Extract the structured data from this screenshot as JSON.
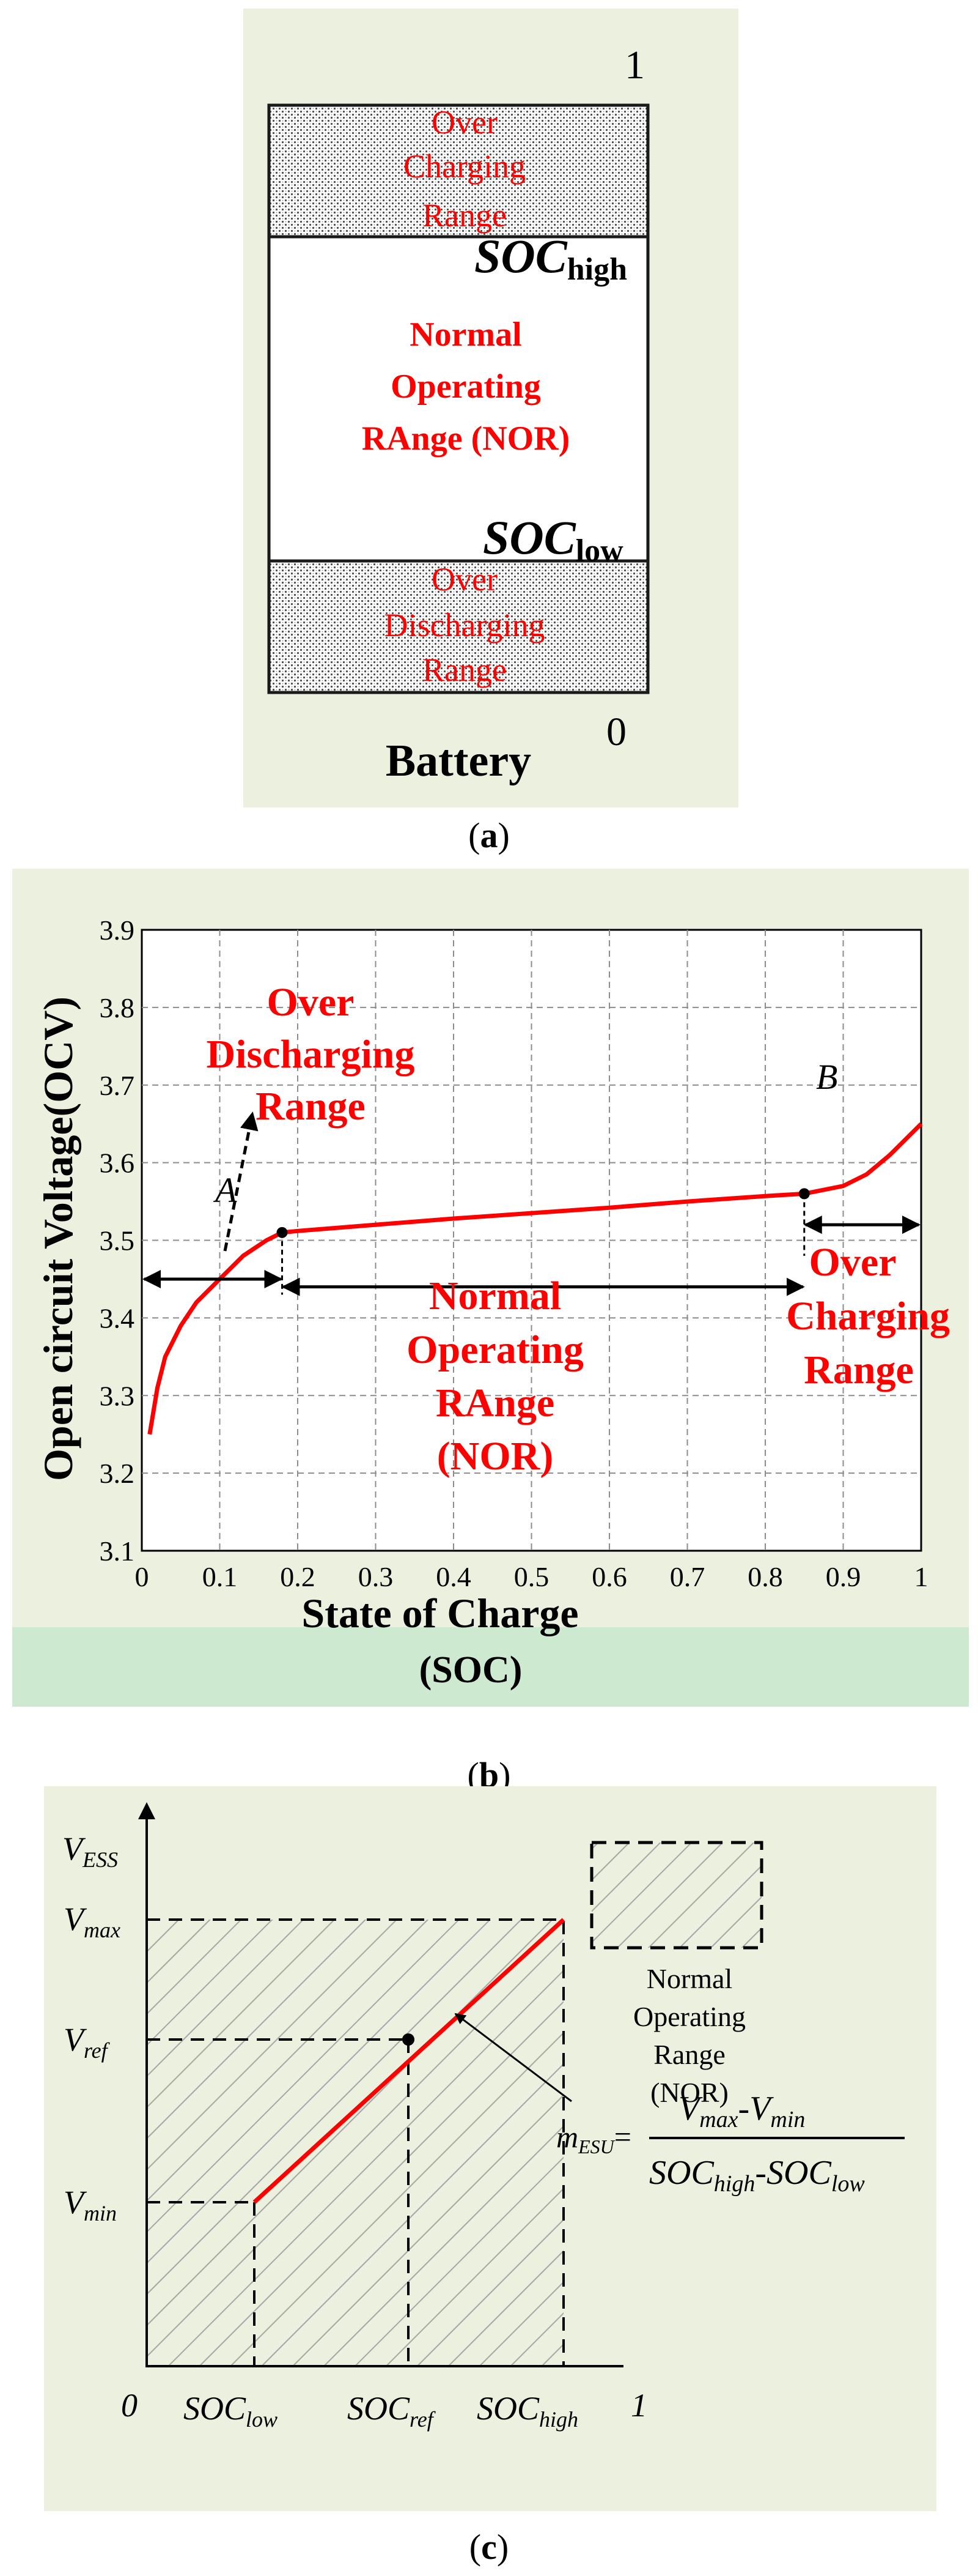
{
  "colors": {
    "panel_bg": "#ebf1de",
    "band_bg": "#cde9cf",
    "red": "#ff0000",
    "black": "#000000",
    "grid": "#8c8c8c",
    "hatch": "#a6a6a6"
  },
  "panel_a": {
    "top_value": "1",
    "bottom_value": "0",
    "over_charging": [
      "Over",
      "Charging",
      "Range"
    ],
    "soc_high_main": "SOC",
    "soc_high_sub": "high",
    "normal": [
      "Normal",
      "Operating",
      "RAnge (NOR)"
    ],
    "soc_low_main": "SOC",
    "soc_low_sub": "low",
    "over_discharging": [
      "Over",
      "Discharging",
      "Range"
    ],
    "battery_label": "Battery",
    "caption_open": "(",
    "caption_letter": "a",
    "caption_close": ")"
  },
  "panel_b": {
    "caption_open": "(",
    "caption_letter": "b",
    "caption_close": ")",
    "unit_band_label": "(SOC)",
    "marker_a": "A",
    "marker_b": "B",
    "over_discharging": [
      "Over",
      "Discharging",
      "Range"
    ],
    "normal": [
      "Normal",
      "Operating",
      "RAnge",
      "(NOR)"
    ],
    "over_charging": [
      "Over",
      "Charging",
      "Range"
    ]
  },
  "chart_data": {
    "type": "line",
    "title": "",
    "xlabel": "State of Charge",
    "ylabel": "Open circuit Voltage(OCV)",
    "xlim": [
      0,
      1
    ],
    "ylim": [
      3.1,
      3.9
    ],
    "x_ticks": [
      "0",
      "0.1",
      "0.2",
      "0.3",
      "0.4",
      "0.5",
      "0.6",
      "0.7",
      "0.8",
      "0.9",
      "1"
    ],
    "y_ticks": [
      "3.1",
      "3.2",
      "3.3",
      "3.4",
      "3.5",
      "3.6",
      "3.7",
      "3.8",
      "3.9"
    ],
    "grid": true,
    "series": [
      {
        "name": "OCV",
        "x": [
          0.01,
          0.02,
          0.03,
          0.05,
          0.07,
          0.1,
          0.13,
          0.16,
          0.18,
          0.2,
          0.3,
          0.4,
          0.5,
          0.6,
          0.7,
          0.8,
          0.85,
          0.9,
          0.93,
          0.96,
          1.0
        ],
        "y": [
          3.25,
          3.31,
          3.35,
          3.39,
          3.42,
          3.45,
          3.48,
          3.5,
          3.51,
          3.512,
          3.52,
          3.528,
          3.535,
          3.542,
          3.55,
          3.557,
          3.56,
          3.57,
          3.585,
          3.61,
          3.65
        ]
      }
    ],
    "points": [
      {
        "x": 0.18,
        "y": 3.51
      },
      {
        "x": 0.85,
        "y": 3.56
      }
    ]
  },
  "panel_c": {
    "caption_open": "(",
    "caption_letter": "c",
    "caption_close": ")",
    "y_axis_label": "V",
    "y_axis_sub": "ESS",
    "vmax": "V",
    "vmax_sub": "max",
    "vref": "V",
    "vref_sub": "ref",
    "vmin": "V",
    "vmin_sub": "min",
    "origin": "0",
    "x_one": "1",
    "soc_low": "SOC",
    "soc_low_sub": "low",
    "soc_ref": "SOC",
    "soc_ref_sub": "ref",
    "soc_high": "SOC",
    "soc_high_sub": "high",
    "legend": [
      "Normal",
      "Operating",
      "Range",
      "(NOR)"
    ],
    "slope_m": "m",
    "slope_sub": "ESU",
    "slope_eq": "=",
    "num_a": "V",
    "num_a_sub": "max",
    "num_dash": "-",
    "num_b": "V",
    "num_b_sub": "min",
    "den_a": "SOC",
    "den_a_sub": "high",
    "den_dash": "-",
    "den_b": "SOC",
    "den_b_sub": "low"
  }
}
